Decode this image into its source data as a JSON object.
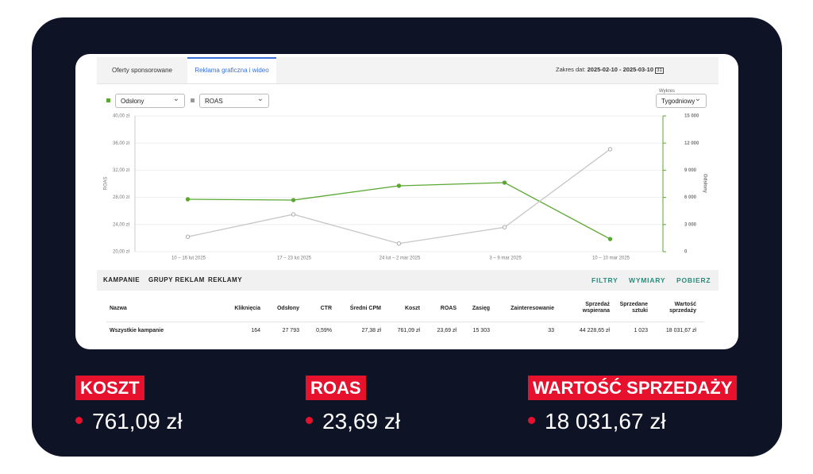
{
  "tabs": [
    "Oferty sponsorowane",
    "Reklama graficzna i wideo"
  ],
  "date_range": {
    "label": "Zakres dat:",
    "value": "2025-02-10 - 2025-03-10",
    "icon": "31"
  },
  "chart_select": {
    "label": "Wykres",
    "value": "Tygodniowy"
  },
  "chart_data": {
    "type": "line",
    "categories": [
      "10 – 16 lut 2025",
      "17 – 23 lut 2025",
      "24 lut – 2 mar 2025",
      "3 – 9 mar 2025",
      "10 – 10 mar 2025"
    ],
    "series": [
      {
        "name": "Odsłony",
        "color": "#5aa832",
        "axis": "y2",
        "values": [
          5790,
          5700,
          7280,
          7630,
          1400
        ]
      },
      {
        "name": "ROAS",
        "color": "#c6c6c6",
        "values": [
          22.2,
          25.5,
          21.2,
          23.6,
          35.1
        ]
      }
    ],
    "ylabel": "ROAS",
    "y2label": "Odsłony",
    "ylim": [
      20,
      40
    ],
    "yticks": [
      {
        "value": 20,
        "label": "20,00 zł"
      },
      {
        "value": 24,
        "label": "24,00 zł"
      },
      {
        "value": 28,
        "label": "28,00 zł"
      },
      {
        "value": 32,
        "label": "32,00 zł"
      },
      {
        "value": 36,
        "label": "36,00 zł"
      },
      {
        "value": 40,
        "label": "40,00 zł"
      }
    ],
    "y2lim": [
      0,
      15000
    ],
    "y2ticks": [
      0,
      {
        "value": 3000,
        "label": "3 000"
      },
      {
        "value": 6000,
        "label": "6 000"
      },
      {
        "value": 9000,
        "label": "9 000"
      },
      {
        "value": 12000,
        "label": "12 000"
      },
      {
        "value": 15000,
        "label": "15 000"
      }
    ],
    "grid": true
  },
  "subtabs": [
    "KAMPANIE",
    "GRUPY REKLAM",
    "REKLAMY"
  ],
  "actions": [
    "FILTRY",
    "WYMIARY",
    "POBIERZ"
  ],
  "table": {
    "columns": [
      "Nazwa",
      "Kliknięcia",
      "Odsłony",
      "CTR",
      "Średni CPM",
      "Koszt",
      "ROAS",
      "Zasięg",
      "Zainteresowanie",
      "Sprzedaż wspierana",
      "Sprzedane sztuki",
      "Wartość sprzedaży"
    ],
    "rows": [
      [
        "Wszystkie kampanie",
        "164",
        "27 793",
        "0,59%",
        "27,38 zł",
        "761,09 zł",
        "23,69 zł",
        "15 303",
        "33",
        "44 228,65 zł",
        "1 023",
        "18 031,67 zł"
      ]
    ]
  },
  "stats": [
    {
      "label": "KOSZT",
      "value": "761,09 zł"
    },
    {
      "label": "ROAS",
      "value": "23,69 zł"
    },
    {
      "label": "WARTOŚĆ SPRZEDAŻY",
      "value": "18 031,67 zł"
    }
  ]
}
